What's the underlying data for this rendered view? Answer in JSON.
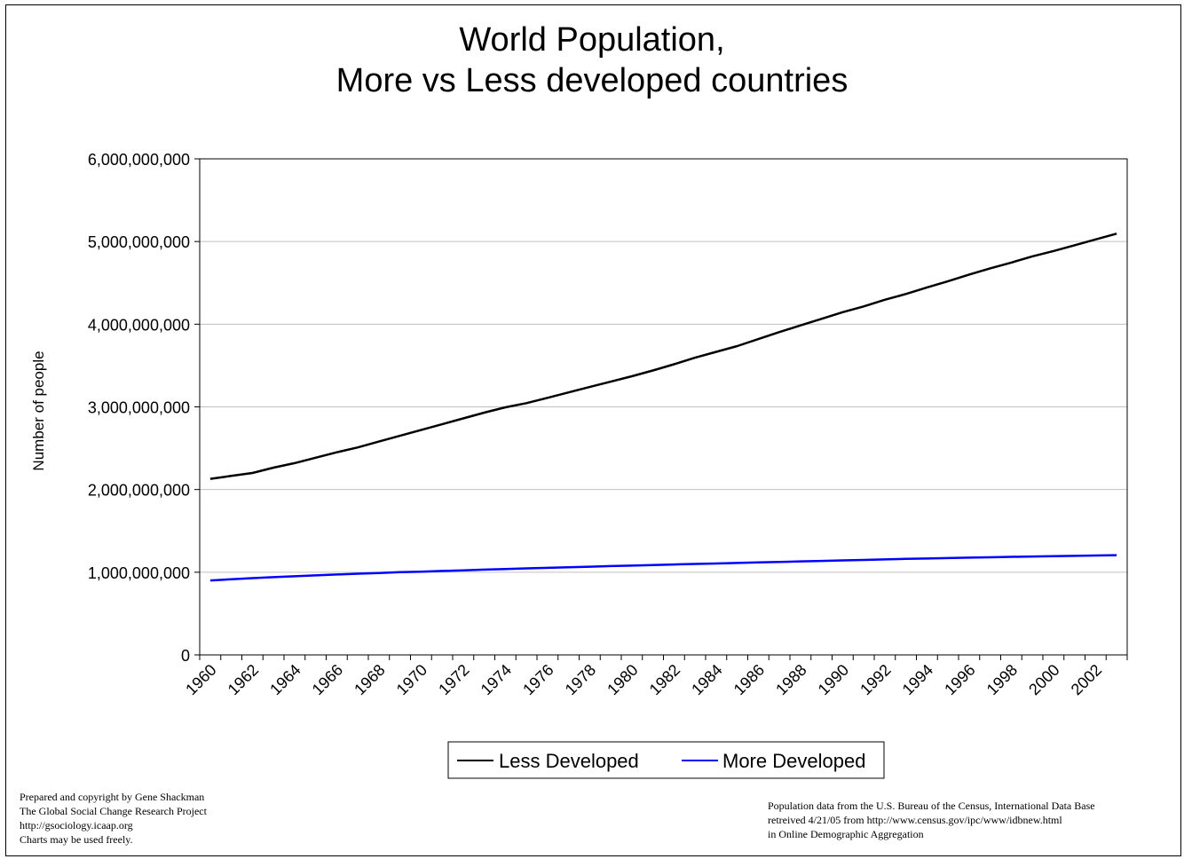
{
  "chart_data": {
    "type": "line",
    "title_lines": [
      "World Population,",
      "More vs Less developed countries"
    ],
    "xlabel": "",
    "ylabel": "Number of people",
    "x": [
      1960,
      1961,
      1962,
      1963,
      1964,
      1965,
      1966,
      1967,
      1968,
      1969,
      1970,
      1971,
      1972,
      1973,
      1974,
      1975,
      1976,
      1977,
      1978,
      1979,
      1980,
      1981,
      1982,
      1983,
      1984,
      1985,
      1986,
      1987,
      1988,
      1989,
      1990,
      1991,
      1992,
      1993,
      1994,
      1995,
      1996,
      1997,
      1998,
      1999,
      2000,
      2001,
      2002,
      2003
    ],
    "x_tick_labels": [
      "1960",
      "1962",
      "1964",
      "1966",
      "1968",
      "1970",
      "1972",
      "1974",
      "1976",
      "1978",
      "1980",
      "1982",
      "1984",
      "1986",
      "1988",
      "1990",
      "1992",
      "1994",
      "1996",
      "1998",
      "2000",
      "2002"
    ],
    "ylim": [
      0,
      6000000000
    ],
    "y_ticks": [
      0,
      1000000000,
      2000000000,
      3000000000,
      4000000000,
      5000000000,
      6000000000
    ],
    "y_tick_labels": [
      "0",
      "1,000,000,000",
      "2,000,000,000",
      "3,000,000,000",
      "4,000,000,000",
      "5,000,000,000",
      "6,000,000,000"
    ],
    "grid": "horizontal",
    "legend_position": "bottom",
    "series": [
      {
        "name": "Less Developed",
        "color": "#000000",
        "values": [
          2130000000,
          2165000000,
          2200000000,
          2265000000,
          2320000000,
          2385000000,
          2450000000,
          2510000000,
          2580000000,
          2650000000,
          2720000000,
          2790000000,
          2860000000,
          2930000000,
          2995000000,
          3045000000,
          3110000000,
          3175000000,
          3240000000,
          3305000000,
          3370000000,
          3440000000,
          3515000000,
          3595000000,
          3665000000,
          3735000000,
          3820000000,
          3905000000,
          3985000000,
          4065000000,
          4145000000,
          4215000000,
          4295000000,
          4365000000,
          4445000000,
          4520000000,
          4600000000,
          4675000000,
          4745000000,
          4820000000,
          4885000000,
          4955000000,
          5025000000,
          5095000000
        ]
      },
      {
        "name": "More Developed",
        "color": "#0000ff",
        "values": [
          900000000,
          915000000,
          928000000,
          940000000,
          951000000,
          962000000,
          972000000,
          982000000,
          991000000,
          1000000000,
          1007000000,
          1015000000,
          1023000000,
          1031000000,
          1039000000,
          1046000000,
          1053000000,
          1060000000,
          1067000000,
          1074000000,
          1080000000,
          1087000000,
          1094000000,
          1100000000,
          1106000000,
          1112000000,
          1118000000,
          1124000000,
          1131000000,
          1137000000,
          1143000000,
          1149000000,
          1155000000,
          1161000000,
          1166000000,
          1171000000,
          1176000000,
          1181000000,
          1186000000,
          1190000000,
          1194000000,
          1198000000,
          1202000000,
          1206000000
        ]
      }
    ]
  },
  "credits_left": [
    "Prepared and copyright by Gene Shackman",
    "The Global Social Change Research Project",
    "http://gsociology.icaap.org",
    "Charts may be used freely."
  ],
  "credits_right": [
    "Population data from the U.S. Bureau of the Census, International Data Base",
    "retreived 4/21/05 from http://www.census.gov/ipc/www/idbnew.html",
    "in Online Demographic Aggregation"
  ]
}
